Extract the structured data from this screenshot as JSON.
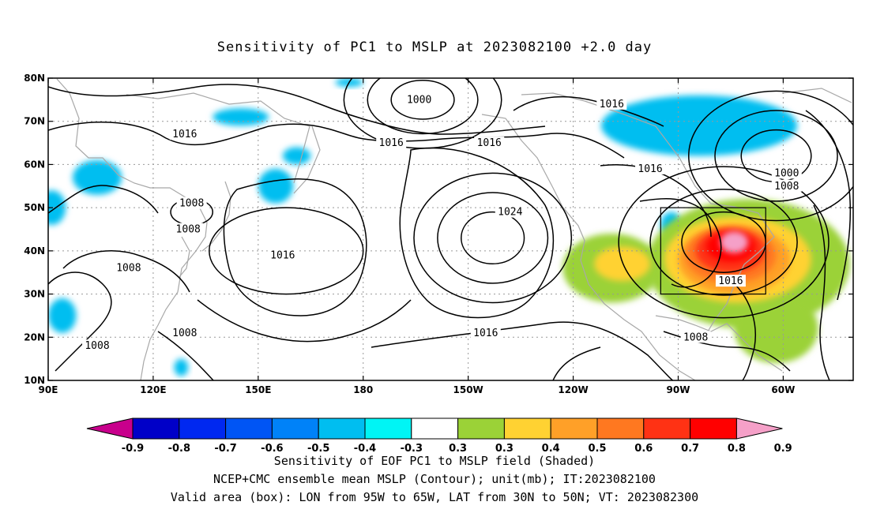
{
  "title": "Sensitivity of PC1 to MSLP at 2023082100 +2.0 day",
  "captions": [
    "Sensitivity of EOF PC1 to MSLP field (Shaded)",
    "NCEP+CMC ensemble mean MSLP (Contour); unit(mb); IT:2023082100",
    "Valid area (box): LON from 95W to 65W, LAT from 30N to 50N; VT: 2023082300"
  ],
  "map": {
    "lon_range": [
      90,
      320
    ],
    "lat_range": [
      10,
      80
    ],
    "lon_ticks": [
      {
        "lon": 90,
        "label": "90E"
      },
      {
        "lon": 120,
        "label": "120E"
      },
      {
        "lon": 150,
        "label": "150E"
      },
      {
        "lon": 180,
        "label": "180"
      },
      {
        "lon": 210,
        "label": "150W"
      },
      {
        "lon": 240,
        "label": "120W"
      },
      {
        "lon": 270,
        "label": "90W"
      },
      {
        "lon": 300,
        "label": "60W"
      }
    ],
    "lat_ticks": [
      {
        "lat": 10,
        "label": "10N"
      },
      {
        "lat": 20,
        "label": "20N"
      },
      {
        "lat": 30,
        "label": "30N"
      },
      {
        "lat": 40,
        "label": "40N"
      },
      {
        "lat": 50,
        "label": "50N"
      },
      {
        "lat": 60,
        "label": "60N"
      },
      {
        "lat": 70,
        "label": "70N"
      },
      {
        "lat": 80,
        "label": "80N"
      }
    ],
    "valid_box": {
      "lon_min": 265,
      "lon_max": 295,
      "lat_min": 30,
      "lat_max": 50
    },
    "contour_labels": [
      {
        "lon": 104,
        "lat": 18,
        "text": "1008"
      },
      {
        "lon": 113,
        "lat": 36,
        "text": "1008"
      },
      {
        "lon": 129,
        "lat": 21,
        "text": "1008"
      },
      {
        "lon": 130,
        "lat": 45,
        "text": "1008"
      },
      {
        "lon": 131,
        "lat": 51,
        "text": "1008"
      },
      {
        "lon": 129,
        "lat": 67,
        "text": "1016"
      },
      {
        "lon": 157,
        "lat": 39,
        "text": "1016"
      },
      {
        "lon": 188,
        "lat": 65,
        "text": "1016"
      },
      {
        "lon": 196,
        "lat": 75,
        "text": "1000"
      },
      {
        "lon": 216,
        "lat": 65,
        "text": "1016"
      },
      {
        "lon": 215,
        "lat": 21,
        "text": "1016"
      },
      {
        "lon": 222,
        "lat": 49,
        "text": "1024"
      },
      {
        "lon": 251,
        "lat": 74,
        "text": "1016"
      },
      {
        "lon": 262,
        "lat": 59,
        "text": "1016"
      },
      {
        "lon": 275,
        "lat": 20,
        "text": "1008"
      },
      {
        "lon": 285,
        "lat": 33,
        "text": "1016"
      },
      {
        "lon": 301,
        "lat": 58,
        "text": "1000"
      },
      {
        "lon": 301,
        "lat": 55,
        "text": "1008"
      }
    ],
    "pressure_centers": [
      {
        "lon": 197,
        "lat": 75,
        "rx": 9,
        "ry": 4.5,
        "rings": 3
      },
      {
        "lon": 217,
        "lat": 43,
        "rx": 9,
        "ry": 6,
        "rings": 3
      },
      {
        "lon": 158,
        "lat": 40,
        "rx": 22,
        "ry": 10,
        "rings": 1
      },
      {
        "lon": 131,
        "lat": 49,
        "rx": 6,
        "ry": 3,
        "rings": 1
      },
      {
        "lon": 298,
        "lat": 62,
        "rx": 10,
        "ry": 6,
        "rings": 3
      },
      {
        "lon": 283,
        "lat": 42,
        "rx": 12,
        "ry": 7,
        "rings": 3
      }
    ],
    "shaded_blobs": [
      {
        "lon": 91,
        "lat": 50,
        "rx": 4,
        "ry": 4,
        "value": -0.4
      },
      {
        "lon": 104,
        "lat": 57,
        "rx": 7,
        "ry": 4,
        "value": -0.4
      },
      {
        "lon": 94,
        "lat": 25,
        "rx": 4,
        "ry": 4,
        "value": -0.4
      },
      {
        "lon": 145,
        "lat": 71,
        "rx": 8,
        "ry": 2,
        "value": -0.4
      },
      {
        "lon": 176,
        "lat": 79,
        "rx": 4,
        "ry": 1,
        "value": -0.4
      },
      {
        "lon": 155,
        "lat": 55,
        "rx": 5,
        "ry": 4,
        "value": -0.4
      },
      {
        "lon": 161,
        "lat": 62,
        "rx": 4,
        "ry": 2,
        "value": -0.4
      },
      {
        "lon": 128,
        "lat": 13,
        "rx": 2,
        "ry": 2,
        "value": -0.4
      },
      {
        "lon": 276,
        "lat": 69,
        "rx": 28,
        "ry": 7,
        "value": -0.4
      },
      {
        "lon": 268,
        "lat": 46,
        "rx": 3,
        "ry": 3,
        "value": -0.4
      },
      {
        "lon": 290,
        "lat": 37,
        "rx": 29,
        "ry": 15,
        "value": 0.3
      },
      {
        "lon": 251,
        "lat": 36,
        "rx": 14,
        "ry": 8,
        "value": 0.3
      },
      {
        "lon": 298,
        "lat": 22,
        "rx": 12,
        "ry": 8,
        "value": 0.3
      },
      {
        "lon": 287,
        "lat": 38,
        "rx": 21,
        "ry": 10,
        "value": 0.4
      },
      {
        "lon": 254,
        "lat": 37,
        "rx": 8,
        "ry": 4,
        "value": 0.4
      },
      {
        "lon": 286,
        "lat": 38,
        "rx": 16,
        "ry": 8,
        "value": 0.5
      },
      {
        "lon": 285,
        "lat": 39,
        "rx": 13,
        "ry": 6.5,
        "value": 0.6
      },
      {
        "lon": 285,
        "lat": 40,
        "rx": 10,
        "ry": 5,
        "value": 0.7
      },
      {
        "lon": 285,
        "lat": 41,
        "rx": 7,
        "ry": 3.5,
        "value": 0.8
      },
      {
        "lon": 286,
        "lat": 42,
        "rx": 4,
        "ry": 2.5,
        "value": 0.9
      }
    ]
  },
  "colorbar": {
    "colors": [
      "#c8008c",
      "#0000c8",
      "#0028f0",
      "#0055f5",
      "#0082f8",
      "#00bef0",
      "#00f5f5",
      "#ffffff",
      "#9bd237",
      "#ffd232",
      "#ffa028",
      "#ff7820",
      "#ff3214",
      "#ff0000",
      "#f5a0c8"
    ],
    "labels": [
      "-0.9",
      "-0.8",
      "-0.7",
      "-0.6",
      "-0.5",
      "-0.4",
      "-0.3",
      "0.3",
      "0.3",
      "0.4",
      "0.5",
      "0.6",
      "0.7",
      "0.8",
      "0.9"
    ]
  }
}
